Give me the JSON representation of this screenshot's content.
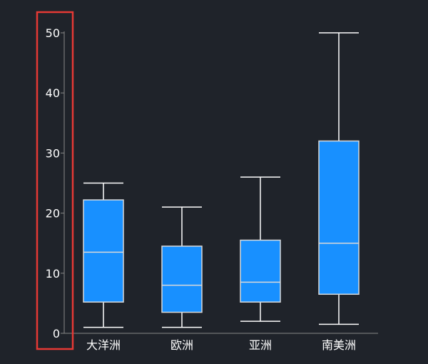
{
  "chart_data": {
    "type": "box",
    "categories": [
      "大洋洲",
      "欧洲",
      "亚洲",
      "南美洲"
    ],
    "series": [
      {
        "boxes": [
          {
            "min": 1,
            "q1": 5.2,
            "median": 13.5,
            "q3": 22.2,
            "max": 25
          },
          {
            "min": 1,
            "q1": 3.5,
            "median": 8,
            "q3": 14.5,
            "max": 21
          },
          {
            "min": 2,
            "q1": 5.2,
            "median": 8.5,
            "q3": 15.5,
            "max": 26
          },
          {
            "min": 1.5,
            "q1": 6.5,
            "median": 15,
            "q3": 32,
            "max": 50
          }
        ]
      }
    ],
    "yticks": [
      "0",
      "10",
      "20",
      "30",
      "40",
      "50"
    ],
    "ylim": [
      0,
      50
    ],
    "colors": {
      "box_fill": "#1890ff",
      "box_stroke": "#d9d9d9",
      "whisker": "#ffffff",
      "axis": "#888888",
      "highlight": "#e53935"
    }
  }
}
